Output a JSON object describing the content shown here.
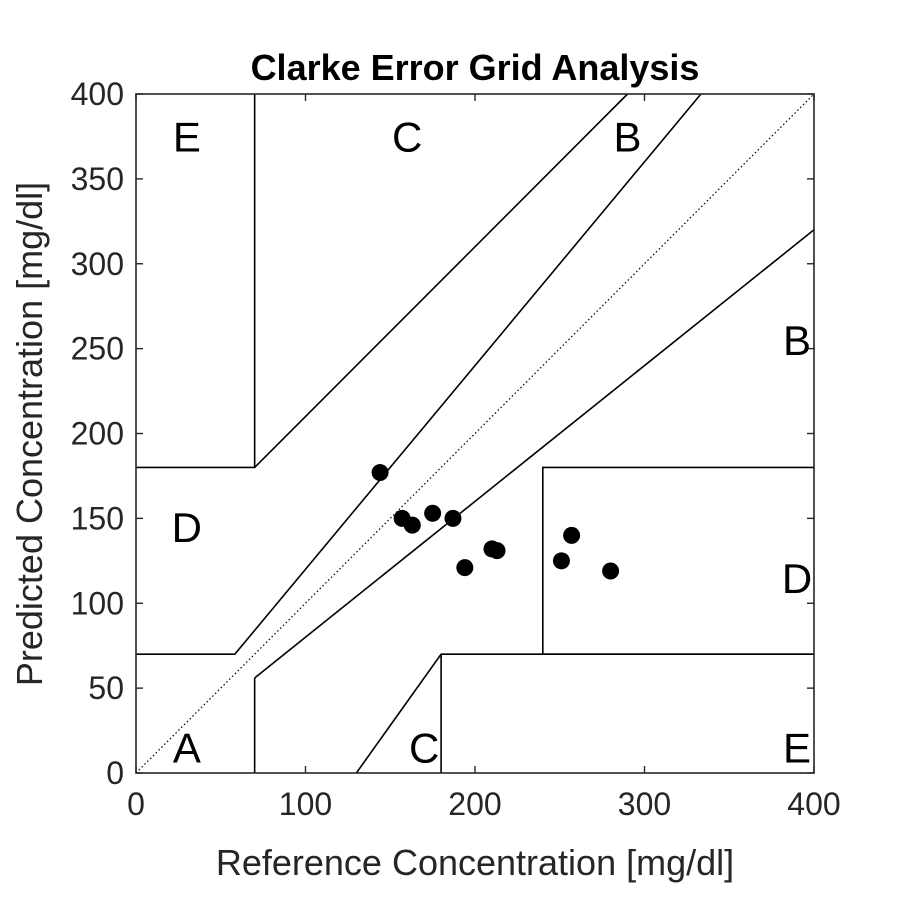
{
  "chart_data": {
    "type": "scatter",
    "title": "Clarke Error Grid Analysis",
    "xlabel": "Reference Concentration [mg/dl]",
    "ylabel": "Predicted Concentration [mg/dl]",
    "xlim": [
      0,
      400
    ],
    "ylim": [
      0,
      400
    ],
    "xticks": [
      0,
      100,
      200,
      300,
      400
    ],
    "yticks": [
      0,
      50,
      100,
      150,
      200,
      250,
      300,
      350,
      400
    ],
    "grid": false,
    "points": [
      {
        "x": 144,
        "y": 177
      },
      {
        "x": 157,
        "y": 150
      },
      {
        "x": 163,
        "y": 146
      },
      {
        "x": 175,
        "y": 153
      },
      {
        "x": 187,
        "y": 150
      },
      {
        "x": 194,
        "y": 121
      },
      {
        "x": 210,
        "y": 132
      },
      {
        "x": 213,
        "y": 131
      },
      {
        "x": 251,
        "y": 125
      },
      {
        "x": 257,
        "y": 140
      },
      {
        "x": 280,
        "y": 119
      }
    ],
    "identity_line": [
      [
        0,
        0
      ],
      [
        400,
        400
      ]
    ],
    "zone_boundaries": [
      [
        [
          70,
          400
        ],
        [
          70,
          180
        ],
        [
          0,
          180
        ]
      ],
      [
        [
          0,
          70
        ],
        [
          58.3,
          70
        ],
        [
          70,
          84
        ]
      ],
      [
        [
          70,
          84
        ],
        [
          333.3,
          400
        ]
      ],
      [
        [
          70,
          180
        ],
        [
          290,
          400
        ]
      ],
      [
        [
          70,
          0
        ],
        [
          70,
          56
        ]
      ],
      [
        [
          70,
          56
        ],
        [
          400,
          320
        ]
      ],
      [
        [
          400,
          180
        ],
        [
          240,
          180
        ],
        [
          240,
          70
        ],
        [
          400,
          70
        ]
      ],
      [
        [
          130,
          0
        ],
        [
          180,
          70
        ],
        [
          400,
          70
        ]
      ],
      [
        [
          180,
          70
        ],
        [
          180,
          0
        ]
      ]
    ],
    "zone_labels": [
      {
        "label": "E",
        "x": 30,
        "y": 375
      },
      {
        "label": "C",
        "x": 160,
        "y": 375
      },
      {
        "label": "B",
        "x": 290,
        "y": 375
      },
      {
        "label": "B",
        "x": 390,
        "y": 255
      },
      {
        "label": "D",
        "x": 30,
        "y": 145
      },
      {
        "label": "D",
        "x": 390,
        "y": 115
      },
      {
        "label": "A",
        "x": 30,
        "y": 15
      },
      {
        "label": "C",
        "x": 170,
        "y": 15
      },
      {
        "label": "E",
        "x": 390,
        "y": 15
      }
    ]
  }
}
